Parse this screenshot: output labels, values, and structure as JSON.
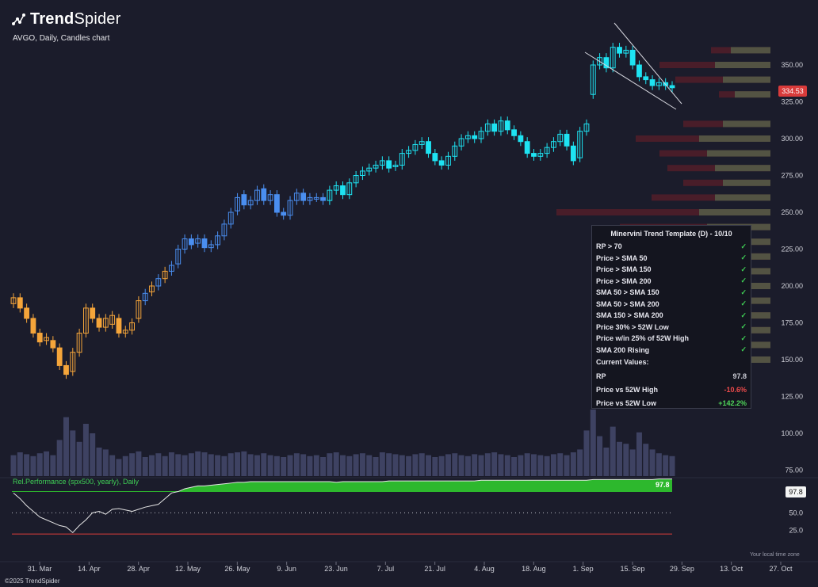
{
  "header": {
    "brand_bold": "Trend",
    "brand_light": "Spider",
    "subtitle": "AVGO, Daily, Candles chart"
  },
  "footer": {
    "copyright": "©2025 TrendSpider",
    "timezone": "Your local time zone"
  },
  "price_tag": "334.53",
  "indicator": {
    "label": "Rel.Performance (spx500, yearly), Daily",
    "last_value": "97.8",
    "tag": "97.8"
  },
  "panel": {
    "title": "Minervini Trend Template (D) - 10/10",
    "criteria": [
      {
        "label": "RP > 70",
        "mark": "✓"
      },
      {
        "label": "Price > SMA 50",
        "mark": "✓"
      },
      {
        "label": "Price > SMA 150",
        "mark": "✓"
      },
      {
        "label": "Price > SMA 200",
        "mark": "✓"
      },
      {
        "label": "SMA 50 > SMA 150",
        "mark": "✓"
      },
      {
        "label": "SMA 50 > SMA 200",
        "mark": "✓"
      },
      {
        "label": "SMA 150 > SMA 200",
        "mark": "✓"
      },
      {
        "label": "Price 30% > 52W Low",
        "mark": "✓"
      },
      {
        "label": "Price w/in 25% of 52W High",
        "mark": "✓"
      },
      {
        "label": "SMA 200 Rising",
        "mark": "✓"
      }
    ],
    "current_title": "Current Values:",
    "values": [
      {
        "label": "RP",
        "value": "97.8",
        "color": "#c9cad3"
      },
      {
        "label": "Price vs 52W High",
        "value": "-10.6%",
        "color": "#ef4b4b"
      },
      {
        "label": "Price vs 52W Low",
        "value": "+142.2%",
        "color": "#4fd65a"
      }
    ]
  },
  "chart_data": {
    "type": "candlestick",
    "symbol": "AVGO",
    "interval": "Daily",
    "colors": {
      "up_orange": "#f5a53a",
      "blue": "#4a8ef0",
      "cyan": "#1ee3f2",
      "volume": "#3e4262",
      "rp_fill": "#2db82d",
      "rp_line": "#e6e6e6",
      "vp_up": "#56624a",
      "vp_down": "#5a1e2a"
    },
    "price_axis": {
      "ticks": [
        "75.00",
        "100.00",
        "125.00",
        "150.00",
        "175.00",
        "200.00",
        "225.00",
        "250.00",
        "275.00",
        "300.00",
        "325.00",
        "350.00"
      ],
      "range": [
        70,
        370
      ]
    },
    "rp_axis": {
      "ticks": [
        "25.0",
        "50.0",
        "75.0"
      ],
      "range": [
        0,
        110
      ]
    },
    "x_ticks": [
      "31. Mar",
      "14. Apr",
      "28. Apr",
      "12. May",
      "26. May",
      "9. Jun",
      "23. Jun",
      "7. Jul",
      "21. Jul",
      "4. Aug",
      "18. Aug",
      "1. Sep",
      "15. Sep",
      "29. Sep",
      "13. Oct",
      "27. Oct"
    ],
    "closes": [
      192,
      185,
      178,
      168,
      162,
      165,
      158,
      146,
      140,
      155,
      168,
      185,
      178,
      172,
      178,
      180,
      168,
      170,
      175,
      190,
      195,
      200,
      205,
      210,
      214,
      225,
      232,
      228,
      232,
      226,
      228,
      234,
      242,
      250,
      260,
      255,
      258,
      265,
      258,
      262,
      250,
      248,
      258,
      263,
      258,
      260,
      260,
      258,
      265,
      268,
      262,
      270,
      275,
      278,
      280,
      282,
      285,
      280,
      282,
      290,
      292,
      296,
      298,
      290,
      285,
      282,
      288,
      295,
      300,
      302,
      300,
      305,
      310,
      305,
      312,
      306,
      302,
      298,
      290,
      288,
      290,
      294,
      298,
      303,
      295,
      285,
      305,
      310,
      350,
      355,
      348,
      362,
      358,
      360,
      350,
      342,
      340,
      336,
      338,
      336,
      334.53
    ],
    "opens": [
      188,
      192,
      185,
      178,
      168,
      163,
      163,
      158,
      146,
      142,
      155,
      168,
      185,
      178,
      172,
      174,
      178,
      168,
      170,
      178,
      190,
      196,
      200,
      205,
      210,
      215,
      225,
      232,
      229,
      232,
      226,
      228,
      234,
      242,
      251,
      262,
      255,
      258,
      266,
      258,
      262,
      250,
      248,
      258,
      263,
      258,
      260,
      260,
      258,
      265,
      268,
      262,
      270,
      275,
      278,
      280,
      282,
      285,
      281,
      282,
      290,
      292,
      296,
      298,
      290,
      285,
      282,
      288,
      295,
      300,
      302,
      300,
      305,
      310,
      305,
      312,
      306,
      302,
      298,
      290,
      288,
      290,
      294,
      298,
      303,
      295,
      287,
      305,
      330,
      350,
      355,
      348,
      362,
      358,
      360,
      350,
      342,
      340,
      336,
      338,
      336
    ],
    "volume": [
      22,
      25,
      23,
      21,
      24,
      26,
      22,
      38,
      62,
      48,
      36,
      55,
      45,
      30,
      28,
      22,
      18,
      21,
      24,
      26,
      20,
      22,
      24,
      21,
      25,
      23,
      22,
      24,
      26,
      25,
      23,
      22,
      21,
      24,
      25,
      26,
      23,
      22,
      24,
      22,
      21,
      20,
      22,
      24,
      23,
      21,
      22,
      20,
      24,
      25,
      22,
      21,
      23,
      24,
      22,
      20,
      25,
      24,
      23,
      22,
      21,
      23,
      24,
      22,
      20,
      21,
      23,
      24,
      22,
      21,
      23,
      22,
      24,
      25,
      23,
      22,
      20,
      22,
      24,
      23,
      22,
      21,
      23,
      24,
      22,
      25,
      28,
      48,
      70,
      42,
      30,
      52,
      36,
      34,
      28,
      46,
      34,
      28,
      24,
      22,
      21
    ],
    "rp": [
      78,
      70,
      60,
      52,
      44,
      40,
      36,
      32,
      30,
      22,
      32,
      40,
      50,
      52,
      48,
      55,
      56,
      54,
      52,
      55,
      58,
      60,
      62,
      70,
      78,
      80,
      84,
      86,
      88,
      88,
      89,
      90,
      91,
      92,
      93,
      93,
      94,
      94,
      94,
      94,
      94,
      94,
      94,
      94,
      94,
      94,
      94,
      94,
      94,
      93,
      94,
      94,
      94,
      94,
      94,
      94,
      94,
      95,
      95,
      95,
      95,
      95,
      95,
      95,
      95,
      95,
      95,
      95,
      95,
      95,
      95,
      96,
      96,
      96,
      96,
      96,
      96,
      96,
      96,
      96,
      96,
      96,
      96,
      96,
      96,
      96,
      96,
      96,
      97,
      97,
      97,
      97,
      97,
      97,
      97,
      97,
      97,
      97,
      97.8,
      97.8,
      97.8
    ],
    "rp_threshold": 80,
    "volume_profile": [
      {
        "price": 360,
        "up": 50,
        "down": 75
      },
      {
        "price": 350,
        "up": 70,
        "down": 140
      },
      {
        "price": 340,
        "up": 60,
        "down": 120
      },
      {
        "price": 330,
        "up": 45,
        "down": 65
      },
      {
        "price": 310,
        "up": 60,
        "down": 110
      },
      {
        "price": 300,
        "up": 90,
        "down": 170
      },
      {
        "price": 290,
        "up": 80,
        "down": 140
      },
      {
        "price": 280,
        "up": 70,
        "down": 130
      },
      {
        "price": 270,
        "up": 60,
        "down": 110
      },
      {
        "price": 260,
        "up": 70,
        "down": 150
      },
      {
        "price": 250,
        "up": 90,
        "down": 270
      },
      {
        "price": 240,
        "up": 80,
        "down": 190
      },
      {
        "price": 230,
        "up": 75,
        "down": 170
      },
      {
        "price": 220,
        "up": 70,
        "down": 140
      },
      {
        "price": 210,
        "up": 55,
        "down": 110
      },
      {
        "price": 200,
        "up": 45,
        "down": 95
      },
      {
        "price": 190,
        "up": 50,
        "down": 95
      },
      {
        "price": 180,
        "up": 70,
        "down": 150
      },
      {
        "price": 170,
        "up": 65,
        "down": 120
      },
      {
        "price": 160,
        "up": 55,
        "down": 100
      },
      {
        "price": 150,
        "up": 45,
        "down": 80
      }
    ]
  }
}
